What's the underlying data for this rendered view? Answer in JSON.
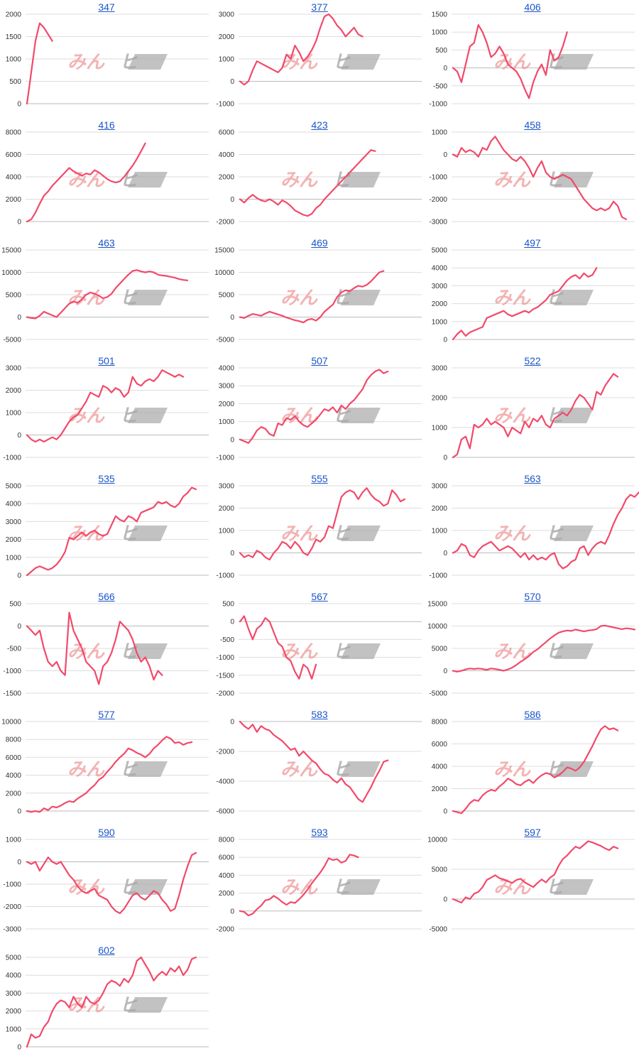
{
  "colors": {
    "line": "#f2496a",
    "grid": "#dddddd",
    "zero": "#bbbbbb",
    "link": "#1a55c9",
    "watermark_red": "#ef9a9a",
    "watermark_gray": "#a8a8a8"
  },
  "watermark": {
    "left": "みん",
    "right": "ヒ"
  },
  "chart_data": [
    {
      "type": "line",
      "title": "347",
      "yticks": [
        0,
        500,
        1000,
        1500,
        2000
      ],
      "ylim": [
        0,
        2000
      ],
      "values": [
        0,
        700,
        1400,
        1800,
        1700,
        1550,
        1400
      ]
    },
    {
      "type": "line",
      "title": "377",
      "yticks": [
        -1000,
        0,
        1000,
        2000,
        3000
      ],
      "ylim": [
        -1000,
        3000
      ],
      "values": [
        0,
        -150,
        0,
        500,
        900,
        800,
        700,
        600,
        500,
        400,
        600,
        1200,
        1000,
        1600,
        1300,
        900,
        1100,
        1400,
        1800,
        2400,
        2900,
        3000,
        2800,
        2500,
        2300,
        2000,
        2200,
        2400,
        2100,
        2000
      ]
    },
    {
      "type": "line",
      "title": "406",
      "yticks": [
        -1000,
        -500,
        0,
        500,
        1000,
        1500
      ],
      "ylim": [
        -1000,
        1500
      ],
      "values": [
        0,
        -100,
        -400,
        100,
        600,
        700,
        1200,
        1000,
        700,
        300,
        400,
        600,
        400,
        100,
        0,
        -100,
        -300,
        -600,
        -850,
        -400,
        -100,
        100,
        -200,
        500,
        200,
        300,
        600,
        1000
      ]
    },
    {
      "type": "line",
      "title": "416",
      "yticks": [
        0,
        2000,
        4000,
        6000,
        8000
      ],
      "ylim": [
        0,
        8000
      ],
      "values": [
        0,
        200,
        800,
        1600,
        2300,
        2700,
        3200,
        3600,
        4000,
        4400,
        4800,
        4500,
        4300,
        4100,
        4300,
        4200,
        4600,
        4400,
        4100,
        3800,
        3600,
        3500,
        3600,
        4000,
        4500,
        5000,
        5600,
        6300,
        7000
      ]
    },
    {
      "type": "line",
      "title": "423",
      "yticks": [
        -2000,
        0,
        2000,
        4000,
        6000
      ],
      "ylim": [
        -2000,
        6000
      ],
      "values": [
        0,
        -300,
        100,
        400,
        100,
        -100,
        -200,
        0,
        -200,
        -500,
        -100,
        -300,
        -600,
        -1000,
        -1200,
        -1400,
        -1500,
        -1300,
        -800,
        -500,
        0,
        400,
        800,
        1200,
        1600,
        2000,
        2400,
        2800,
        3200,
        3600,
        4000,
        4400,
        4300
      ]
    },
    {
      "type": "line",
      "title": "458",
      "yticks": [
        -3000,
        -2000,
        -1000,
        0,
        1000
      ],
      "ylim": [
        -3000,
        1000
      ],
      "values": [
        0,
        -100,
        300,
        100,
        200,
        100,
        -100,
        300,
        200,
        600,
        800,
        500,
        200,
        0,
        -200,
        -300,
        -100,
        -300,
        -600,
        -1000,
        -600,
        -300,
        -800,
        -1000,
        -1100,
        -1000,
        -900,
        -1000,
        -1100,
        -1400,
        -1700,
        -2000,
        -2200,
        -2400,
        -2500,
        -2400,
        -2500,
        -2400,
        -2100,
        -2300,
        -2800,
        -2900
      ]
    },
    {
      "type": "line",
      "title": "463",
      "yticks": [
        -5000,
        0,
        5000,
        10000,
        15000
      ],
      "ylim": [
        -5000,
        15000
      ],
      "values": [
        0,
        -200,
        -300,
        300,
        1200,
        800,
        400,
        0,
        1000,
        2000,
        3000,
        3500,
        3200,
        4000,
        5000,
        5500,
        5200,
        4800,
        4200,
        4500,
        5200,
        6500,
        7500,
        8500,
        9500,
        10300,
        10500,
        10200,
        10000,
        10200,
        10000,
        9500,
        9300,
        9200,
        9000,
        8800,
        8500,
        8300,
        8200
      ]
    },
    {
      "type": "line",
      "title": "469",
      "yticks": [
        -5000,
        0,
        5000,
        10000,
        15000
      ],
      "ylim": [
        -5000,
        15000
      ],
      "values": [
        0,
        -200,
        300,
        700,
        500,
        300,
        800,
        1200,
        900,
        600,
        300,
        -100,
        -400,
        -700,
        -900,
        -1200,
        -600,
        -400,
        -800,
        0,
        1200,
        2000,
        2800,
        4500,
        5500,
        6000,
        5800,
        6500,
        7000,
        6800,
        7200,
        8000,
        9000,
        10000,
        10300
      ]
    },
    {
      "type": "line",
      "title": "497",
      "yticks": [
        0,
        1000,
        2000,
        3000,
        4000,
        5000
      ],
      "ylim": [
        0,
        5000
      ],
      "values": [
        0,
        300,
        500,
        200,
        400,
        500,
        600,
        700,
        1200,
        1300,
        1400,
        1500,
        1600,
        1400,
        1300,
        1400,
        1500,
        1600,
        1500,
        1700,
        1800,
        2000,
        2200,
        2500,
        2600,
        2700,
        3000,
        3300,
        3500,
        3600,
        3400,
        3700,
        3500,
        3600,
        4000
      ]
    },
    {
      "type": "line",
      "title": "501",
      "yticks": [
        -1000,
        0,
        1000,
        2000,
        3000
      ],
      "ylim": [
        -1000,
        3000
      ],
      "values": [
        0,
        -200,
        -300,
        -200,
        -300,
        -200,
        -100,
        -200,
        0,
        300,
        600,
        800,
        900,
        1200,
        1500,
        1900,
        1800,
        1700,
        2200,
        2100,
        1900,
        2100,
        2000,
        1700,
        1900,
        2600,
        2300,
        2200,
        2400,
        2500,
        2400,
        2600,
        2900,
        2800,
        2700,
        2600,
        2700,
        2600
      ]
    },
    {
      "type": "line",
      "title": "507",
      "yticks": [
        -1000,
        0,
        1000,
        2000,
        3000,
        4000
      ],
      "ylim": [
        -1000,
        4000
      ],
      "values": [
        0,
        -100,
        -200,
        100,
        500,
        700,
        600,
        300,
        200,
        900,
        800,
        1200,
        1100,
        1300,
        1000,
        800,
        700,
        900,
        1100,
        1400,
        1700,
        1600,
        1800,
        1500,
        1900,
        1700,
        2000,
        2200,
        2500,
        2800,
        3300,
        3600,
        3800,
        3900,
        3700,
        3800
      ]
    },
    {
      "type": "line",
      "title": "522",
      "yticks": [
        0,
        1000,
        2000,
        3000
      ],
      "ylim": [
        0,
        3000
      ],
      "values": [
        0,
        100,
        600,
        700,
        300,
        1100,
        1000,
        1100,
        1300,
        1100,
        1200,
        1100,
        1000,
        700,
        1000,
        900,
        800,
        1200,
        1000,
        1300,
        1200,
        1400,
        1100,
        1000,
        1300,
        1400,
        1500,
        1400,
        1600,
        1900,
        2100,
        2000,
        1800,
        1600,
        2200,
        2100,
        2400,
        2600,
        2800,
        2700
      ]
    },
    {
      "type": "line",
      "title": "535",
      "yticks": [
        0,
        1000,
        2000,
        3000,
        4000,
        5000
      ],
      "ylim": [
        0,
        5000
      ],
      "values": [
        0,
        200,
        400,
        500,
        400,
        300,
        400,
        600,
        900,
        1300,
        2100,
        2000,
        2200,
        2400,
        2200,
        2400,
        2500,
        2300,
        2200,
        2300,
        2800,
        3300,
        3100,
        3000,
        3300,
        3200,
        3000,
        3500,
        3600,
        3700,
        3800,
        4100,
        4000,
        4100,
        3900,
        3800,
        4000,
        4400,
        4600,
        4900,
        4800
      ]
    },
    {
      "type": "line",
      "title": "555",
      "yticks": [
        -1000,
        0,
        1000,
        2000,
        3000
      ],
      "ylim": [
        -1000,
        3000
      ],
      "values": [
        0,
        -200,
        -100,
        -200,
        100,
        0,
        -200,
        -300,
        0,
        200,
        500,
        400,
        200,
        500,
        300,
        0,
        -100,
        200,
        600,
        500,
        700,
        1200,
        1100,
        1800,
        2500,
        2700,
        2800,
        2700,
        2400,
        2700,
        2900,
        2600,
        2400,
        2300,
        2100,
        2200,
        2800,
        2600,
        2300,
        2400
      ]
    },
    {
      "type": "line",
      "title": "563",
      "yticks": [
        -1000,
        0,
        1000,
        2000,
        3000
      ],
      "ylim": [
        -1000,
        3000
      ],
      "values": [
        0,
        100,
        400,
        300,
        -100,
        -200,
        100,
        300,
        400,
        500,
        300,
        100,
        200,
        300,
        200,
        0,
        -200,
        0,
        -300,
        -100,
        -300,
        -200,
        -300,
        -100,
        0,
        -500,
        -700,
        -600,
        -400,
        -300,
        200,
        300,
        -100,
        200,
        400,
        500,
        400,
        800,
        1300,
        1700,
        2000,
        2400,
        2600,
        2500,
        2700,
        2600
      ]
    },
    {
      "type": "line",
      "title": "566",
      "yticks": [
        -1500,
        -1000,
        -500,
        0,
        500
      ],
      "ylim": [
        -1500,
        500
      ],
      "values": [
        0,
        -100,
        -200,
        -100,
        -500,
        -800,
        -900,
        -800,
        -1000,
        -1100,
        300,
        -100,
        -300,
        -500,
        -800,
        -900,
        -1000,
        -1300,
        -900,
        -800,
        -600,
        -300,
        100,
        0,
        -100,
        -300,
        -600,
        -800,
        -700,
        -900,
        -1200,
        -1000,
        -1100
      ]
    },
    {
      "type": "line",
      "title": "567",
      "yticks": [
        -2000,
        -1500,
        -1000,
        -500,
        0,
        500
      ],
      "ylim": [
        -2000,
        500
      ],
      "values": [
        0,
        150,
        -200,
        -500,
        -200,
        -100,
        100,
        0,
        -300,
        -600,
        -700,
        -1000,
        -1100,
        -1400,
        -1600,
        -1200,
        -1300,
        -1600,
        -1200
      ]
    },
    {
      "type": "line",
      "title": "570",
      "yticks": [
        -5000,
        0,
        5000,
        10000,
        15000
      ],
      "ylim": [
        -5000,
        15000
      ],
      "values": [
        0,
        -200,
        0,
        300,
        500,
        400,
        500,
        400,
        200,
        500,
        400,
        200,
        0,
        300,
        700,
        1300,
        2000,
        2600,
        3300,
        4200,
        4800,
        5600,
        6400,
        7200,
        7900,
        8500,
        8800,
        9000,
        8900,
        9200,
        9000,
        8800,
        9000,
        9100,
        9300,
        10000,
        10100,
        9900,
        9700,
        9500,
        9300,
        9500,
        9400,
        9200
      ]
    },
    {
      "type": "line",
      "title": "577",
      "yticks": [
        0,
        2000,
        4000,
        6000,
        8000,
        10000
      ],
      "ylim": [
        0,
        10000
      ],
      "values": [
        0,
        -100,
        0,
        -100,
        300,
        100,
        500,
        400,
        600,
        900,
        1100,
        1000,
        1400,
        1700,
        2000,
        2500,
        2900,
        3500,
        3800,
        4400,
        4900,
        5500,
        6000,
        6400,
        7000,
        6800,
        6500,
        6300,
        6000,
        6400,
        7000,
        7400,
        7900,
        8300,
        8100,
        7600,
        7700,
        7400,
        7600,
        7700
      ]
    },
    {
      "type": "line",
      "title": "583",
      "yticks": [
        -6000,
        -4000,
        -2000,
        0
      ],
      "ylim": [
        -6000,
        0
      ],
      "values": [
        0,
        -300,
        -500,
        -200,
        -700,
        -300,
        -500,
        -600,
        -900,
        -1100,
        -1300,
        -1600,
        -1900,
        -1800,
        -2300,
        -2000,
        -2300,
        -2600,
        -2800,
        -3200,
        -3500,
        -3600,
        -3900,
        -4100,
        -3800,
        -4200,
        -4400,
        -4800,
        -5200,
        -5400,
        -4900,
        -4400,
        -3800,
        -3300,
        -2700,
        -2600
      ]
    },
    {
      "type": "line",
      "title": "586",
      "yticks": [
        0,
        2000,
        4000,
        6000,
        8000
      ],
      "ylim": [
        0,
        8000
      ],
      "values": [
        0,
        -100,
        -200,
        200,
        700,
        1000,
        900,
        1400,
        1700,
        1900,
        1800,
        2200,
        2500,
        2900,
        2700,
        2400,
        2300,
        2600,
        2800,
        2500,
        2900,
        3200,
        3400,
        3300,
        3000,
        3200,
        3500,
        3900,
        3800,
        3600,
        3900,
        4400,
        5100,
        5800,
        6600,
        7300,
        7600,
        7300,
        7400,
        7200
      ]
    },
    {
      "type": "line",
      "title": "590",
      "yticks": [
        -3000,
        -2000,
        -1000,
        0,
        1000
      ],
      "ylim": [
        -3000,
        1000
      ],
      "values": [
        0,
        -100,
        0,
        -400,
        -100,
        200,
        0,
        -100,
        0,
        -300,
        -600,
        -800,
        -1100,
        -1300,
        -1400,
        -1300,
        -1200,
        -1500,
        -1600,
        -1700,
        -2000,
        -2200,
        -2300,
        -2100,
        -1800,
        -1500,
        -1400,
        -1600,
        -1700,
        -1500,
        -1300,
        -1400,
        -1700,
        -1900,
        -2200,
        -2100,
        -1500,
        -800,
        -200,
        300,
        400
      ]
    },
    {
      "type": "line",
      "title": "593",
      "yticks": [
        -2000,
        0,
        2000,
        4000,
        6000,
        8000
      ],
      "ylim": [
        -2000,
        8000
      ],
      "values": [
        0,
        -100,
        -500,
        -300,
        200,
        600,
        1200,
        1300,
        1700,
        1400,
        1000,
        700,
        1000,
        900,
        1300,
        1800,
        2400,
        3100,
        3700,
        4300,
        5000,
        5900,
        5700,
        5800,
        5400,
        5600,
        6300,
        6200,
        6000
      ]
    },
    {
      "type": "line",
      "title": "597",
      "yticks": [
        -5000,
        0,
        5000,
        10000
      ],
      "ylim": [
        -5000,
        10000
      ],
      "values": [
        0,
        -300,
        -600,
        300,
        0,
        900,
        1200,
        2000,
        3200,
        3600,
        4000,
        3500,
        3300,
        3000,
        2700,
        3200,
        3400,
        2800,
        2400,
        2000,
        2700,
        3300,
        2800,
        3600,
        4100,
        5600,
        6700,
        7300,
        8100,
        8800,
        8500,
        9100,
        9700,
        9500,
        9200,
        8900,
        8500,
        8200,
        8800,
        8500
      ]
    },
    {
      "type": "line",
      "title": "602",
      "yticks": [
        0,
        1000,
        2000,
        3000,
        4000,
        5000
      ],
      "ylim": [
        0,
        5000
      ],
      "values": [
        0,
        700,
        500,
        600,
        1100,
        1400,
        2000,
        2400,
        2600,
        2500,
        2200,
        2800,
        2400,
        2200,
        2800,
        2500,
        2400,
        2600,
        3000,
        3500,
        3700,
        3600,
        3400,
        3800,
        3600,
        4000,
        4800,
        5000,
        4600,
        4200,
        3700,
        4000,
        4200,
        4000,
        4400,
        4200,
        4500,
        4000,
        4300,
        4900,
        5000
      ]
    }
  ]
}
